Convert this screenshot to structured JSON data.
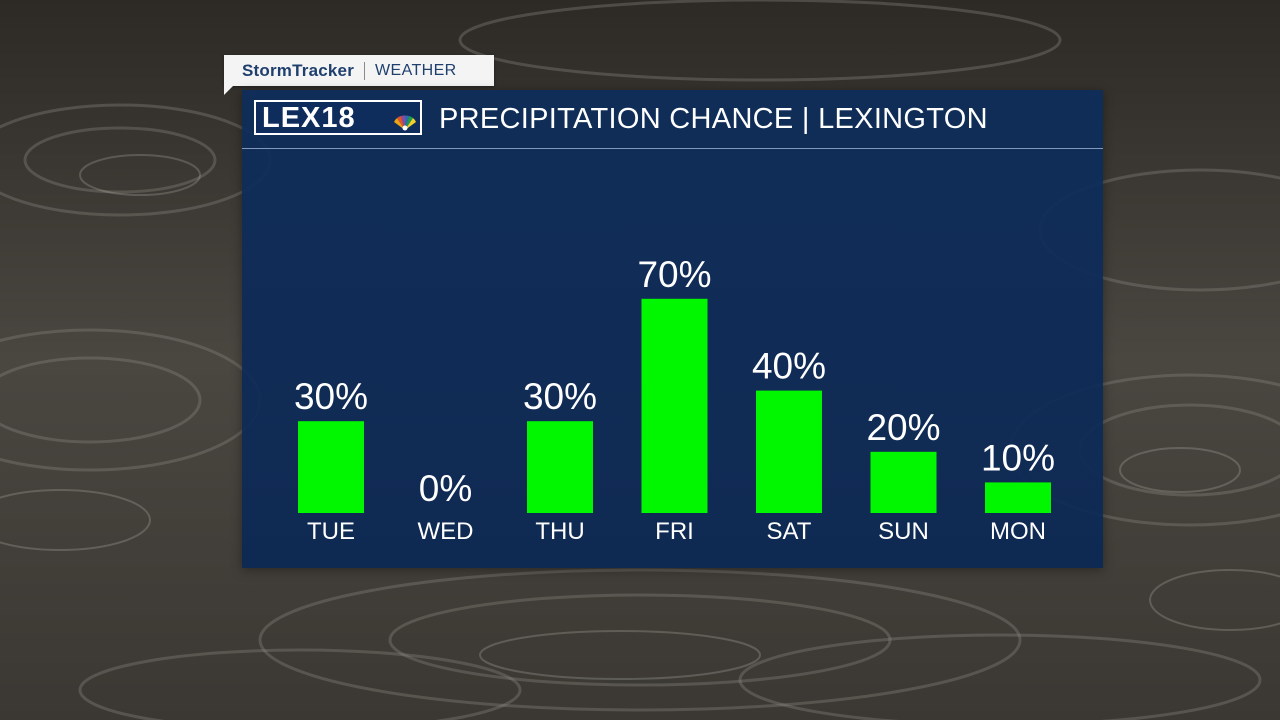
{
  "tab": {
    "brand": "StormTracker",
    "section": "WEATHER"
  },
  "header": {
    "logo": "LEX18",
    "title": "PRECIPITATION CHANCE | LEXINGTON"
  },
  "chart_data": {
    "type": "bar",
    "title": "PRECIPITATION CHANCE | LEXINGTON",
    "categories": [
      "TUE",
      "WED",
      "THU",
      "FRI",
      "SAT",
      "SUN",
      "MON"
    ],
    "values": [
      30,
      0,
      30,
      70,
      40,
      20,
      10
    ],
    "value_labels": [
      "30%",
      "0%",
      "30%",
      "70%",
      "40%",
      "20%",
      "10%"
    ],
    "unit": "%",
    "ylim": [
      0,
      100
    ],
    "grid": false,
    "legend": "none",
    "bar_color": "#00f700",
    "text_color": "#ffffff"
  },
  "colors": {
    "panel": "#0d2d5c",
    "accent": "#1f3f6e"
  }
}
